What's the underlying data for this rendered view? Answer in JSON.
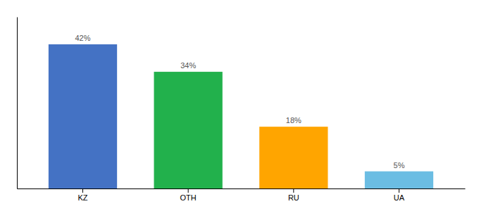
{
  "chart_data": {
    "type": "bar",
    "categories": [
      "KZ",
      "OTH",
      "RU",
      "UA"
    ],
    "values": [
      42,
      34,
      18,
      5
    ],
    "value_labels": [
      "42%",
      "34%",
      "18%",
      "5%"
    ],
    "colors": [
      "#4472C4",
      "#22B14C",
      "#FFA500",
      "#6BBDE3"
    ],
    "ylim": [
      0,
      50
    ],
    "data_labels": true,
    "tick_labels": "x"
  }
}
